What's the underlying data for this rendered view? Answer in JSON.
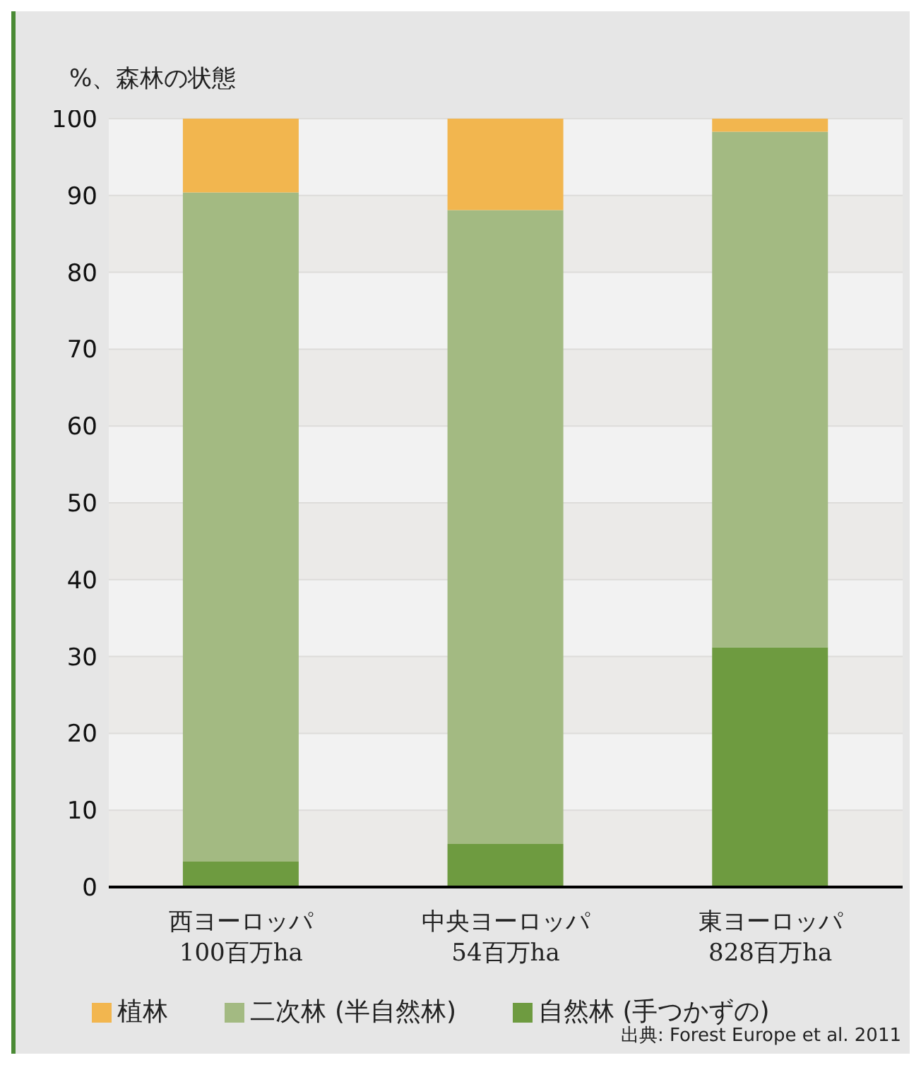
{
  "chart_data": {
    "type": "bar",
    "stacked": true,
    "ylabel": "%、森林の状態",
    "categories": [
      "西ヨーロッパ\n100百万ha",
      "中央ヨーロッパ\n54百万ha",
      "東ヨーロッパ\n828百万ha"
    ],
    "series": [
      {
        "name": "自然林 (手つかずの)",
        "color": "#6e9b40",
        "values": [
          3.3,
          5.6,
          31.2
        ]
      },
      {
        "name": "二次林 (半自然林)",
        "color": "#a3ba82",
        "values": [
          87.1,
          82.5,
          67.1
        ]
      },
      {
        "name": "植林",
        "color": "#f2b64f",
        "values": [
          9.6,
          11.9,
          1.7
        ]
      }
    ],
    "ylim": [
      0,
      100
    ],
    "yticks": [
      0,
      10,
      20,
      30,
      40,
      50,
      60,
      70,
      80,
      90,
      100
    ],
    "grid": "y",
    "legend": "bottom",
    "annotations": [
      "出典: Forest Europe et al. 2011"
    ]
  }
}
